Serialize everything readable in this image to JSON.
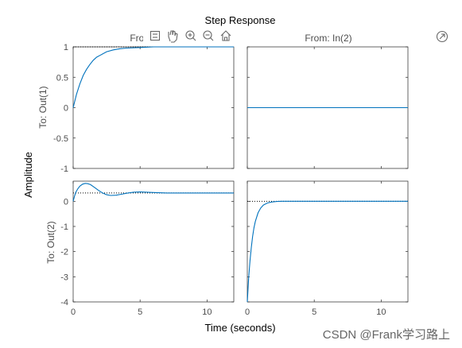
{
  "chart_data": {
    "type": "line",
    "title": "Step Response",
    "xlabel": "Time (seconds)",
    "ylabel": "Amplitude",
    "columns": [
      "From: In(1)",
      "From: In(2)"
    ],
    "rows": [
      "To: Out(1)",
      "To: Out(2)"
    ],
    "xlim": [
      0,
      12
    ],
    "xticks": [
      0,
      5,
      10
    ],
    "panels": [
      {
        "id": "out1-in1",
        "row": 0,
        "col": 0,
        "ylim": [
          -1,
          1
        ],
        "yticks": [
          -1,
          -0.5,
          0,
          0.5,
          1
        ],
        "yticklabels": [
          "-1",
          "-0.5",
          "0",
          "0.5",
          "1"
        ],
        "steady_state": 1,
        "x": [
          0,
          0.25,
          0.5,
          0.75,
          1,
          1.25,
          1.5,
          1.75,
          2,
          2.5,
          3,
          3.5,
          4,
          5,
          6,
          8,
          10,
          12
        ],
        "y": [
          0,
          0.22,
          0.39,
          0.53,
          0.63,
          0.71,
          0.78,
          0.83,
          0.86,
          0.92,
          0.95,
          0.97,
          0.98,
          0.99,
          1,
          1,
          1,
          1
        ]
      },
      {
        "id": "out1-in2",
        "row": 0,
        "col": 1,
        "ylim": [
          -1,
          1
        ],
        "yticks": [
          -1,
          -0.5,
          0,
          0.5,
          1
        ],
        "yticklabels": [],
        "steady_state": null,
        "x": [
          0,
          12
        ],
        "y": [
          0,
          0
        ]
      },
      {
        "id": "out2-in1",
        "row": 1,
        "col": 0,
        "ylim": [
          -4,
          0.8
        ],
        "yticks": [
          -4,
          -3,
          -2,
          -1,
          0
        ],
        "yticklabels": [
          "-4",
          "-3",
          "-2",
          "-1",
          "0"
        ],
        "steady_state": 0.33,
        "x": [
          0,
          0.1,
          0.2,
          0.35,
          0.5,
          0.7,
          0.9,
          1.1,
          1.3,
          1.6,
          1.9,
          2.2,
          2.5,
          2.8,
          3.2,
          3.6,
          4,
          4.5,
          5,
          5.5,
          6,
          7,
          8,
          9,
          10,
          11,
          12
        ],
        "y": [
          0,
          0.2,
          0.36,
          0.5,
          0.6,
          0.68,
          0.71,
          0.7,
          0.66,
          0.55,
          0.43,
          0.33,
          0.26,
          0.23,
          0.24,
          0.28,
          0.32,
          0.36,
          0.37,
          0.36,
          0.35,
          0.33,
          0.33,
          0.33,
          0.33,
          0.33,
          0.33
        ]
      },
      {
        "id": "out2-in2",
        "row": 1,
        "col": 1,
        "ylim": [
          -4,
          0.8
        ],
        "yticks": [
          -4,
          -3,
          -2,
          -1,
          0
        ],
        "yticklabels": [],
        "steady_state": 0,
        "x": [
          0,
          0.1,
          0.2,
          0.3,
          0.4,
          0.5,
          0.6,
          0.8,
          1,
          1.2,
          1.5,
          1.8,
          2.2,
          2.6,
          3,
          4,
          6,
          8,
          10,
          12
        ],
        "y": [
          -4,
          -3.05,
          -2.36,
          -1.82,
          -1.39,
          -1.05,
          -0.8,
          -0.46,
          -0.27,
          -0.15,
          -0.07,
          -0.03,
          -0.01,
          0,
          0,
          0,
          0,
          0,
          0,
          0
        ]
      }
    ]
  },
  "toolbar": [
    "export-icon",
    "pan-icon",
    "zoom-in-icon",
    "zoom-out-icon",
    "home-icon"
  ],
  "expand_icon": "arrow-up-right-icon",
  "watermark": "CSDN @Frank学习路上"
}
